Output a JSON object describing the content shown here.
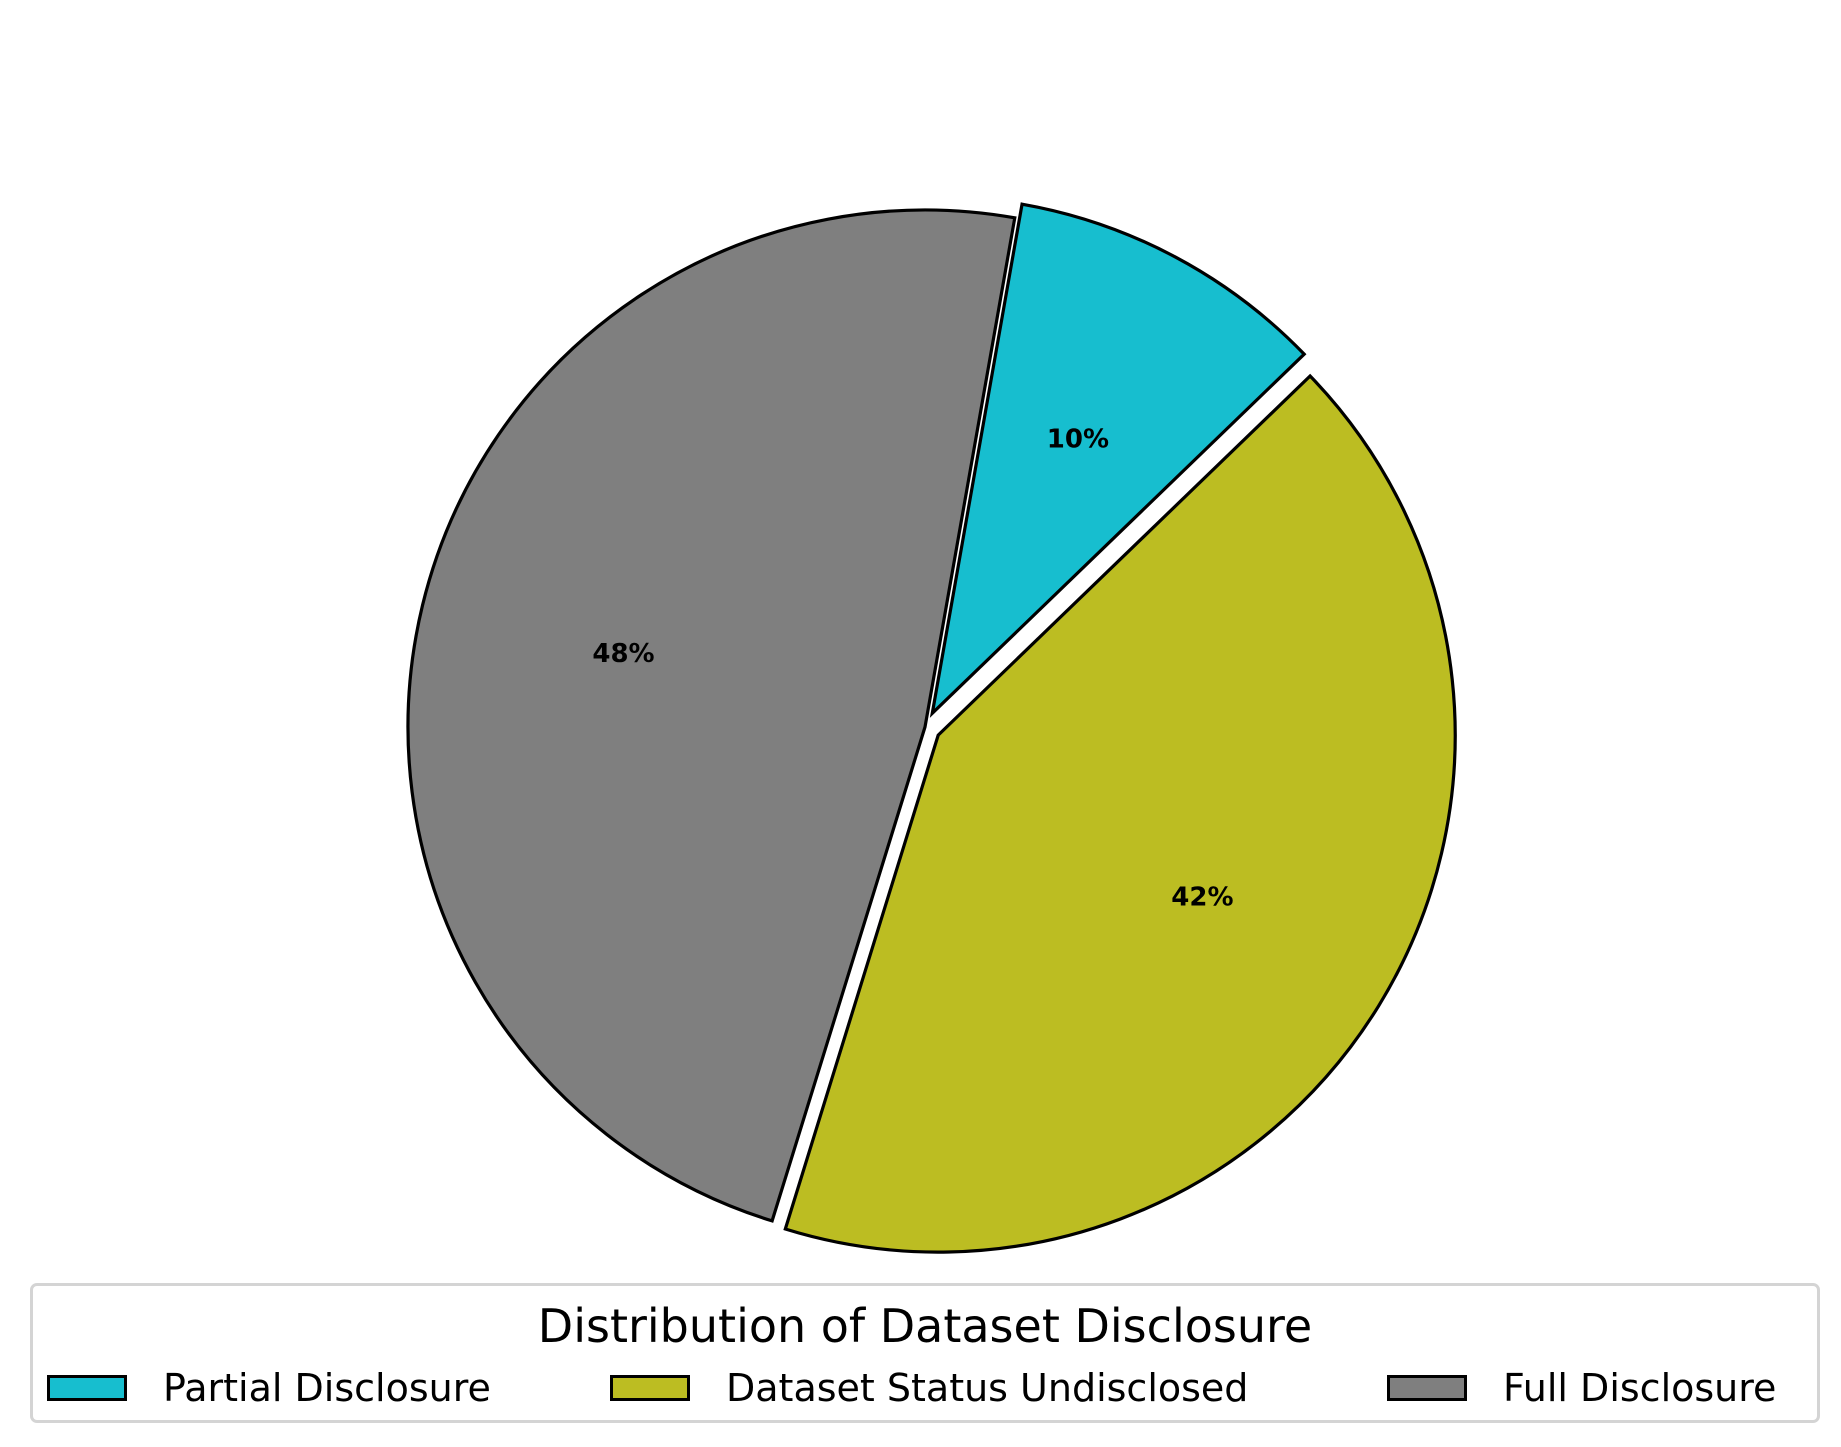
{
  "chart_data": {
    "type": "pie",
    "title": "",
    "legend_title": "Distribution of Dataset Disclosure",
    "legend_placement": "bottom",
    "slices": [
      {
        "name": "Partial Disclosure",
        "value": 10,
        "label": "10%",
        "color": "#17becf",
        "exploded": true
      },
      {
        "name": "Dataset Status Undisclosed",
        "value": 42,
        "label": "42%",
        "color": "#bcbd22",
        "exploded": true
      },
      {
        "name": "Full Disclosure",
        "value": 48,
        "label": "48%",
        "color": "#7f7f7f",
        "exploded": false
      }
    ]
  }
}
